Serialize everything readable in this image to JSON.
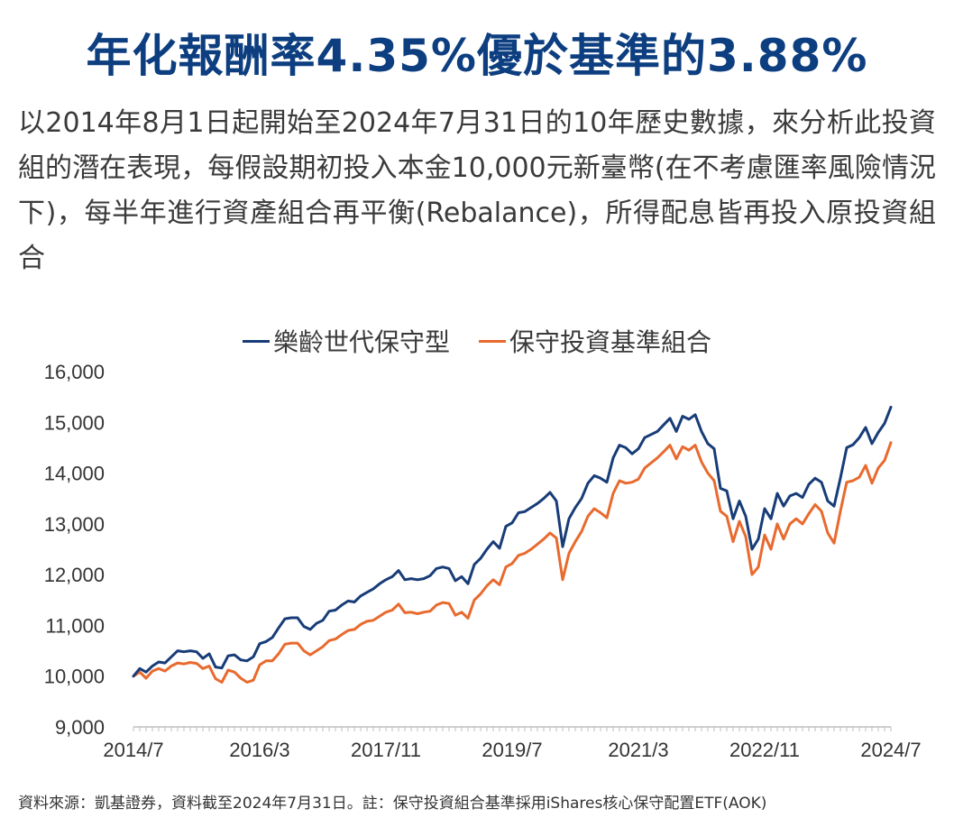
{
  "title": "年化報酬率4.35%優於基準的3.88%",
  "description": "以2014年8月1日起開始至2024年7月31日的10年歷史數據，來分析此投資組的潛在表現，每假設期初投入本金10,000元新臺幣(在不考慮匯率風險情況下)，每半年進行資產組合再平衡(Rebalance)，所得配息皆再投入原投資組合",
  "source": "資料來源：凱基證券，資料截至2024年7月31日。註：保守投資組合基準採用iShares核心保守配置ETF(AOK)",
  "chart_data": {
    "type": "line",
    "xlabel": "",
    "ylabel": "",
    "ylim": [
      9000,
      16000
    ],
    "y_ticks": [
      "9,000",
      "10,000",
      "11,000",
      "12,000",
      "13,000",
      "14,000",
      "15,000",
      "16,000"
    ],
    "x_range": [
      "2014-07",
      "2024-07"
    ],
    "x_tick_labels": [
      "2014/7",
      "2016/3",
      "2017/11",
      "2019/7",
      "2021/3",
      "2022/11",
      "2024/7"
    ],
    "grid": false,
    "legend_position": "top-center",
    "series": [
      {
        "name": "樂齡世代保守型",
        "color": "#173c78",
        "points": [
          [
            "2014-07",
            10000
          ],
          [
            "2014-08",
            10150
          ],
          [
            "2014-09",
            10080
          ],
          [
            "2014-10",
            10200
          ],
          [
            "2014-11",
            10280
          ],
          [
            "2014-12",
            10260
          ],
          [
            "2015-01",
            10380
          ],
          [
            "2015-02",
            10500
          ],
          [
            "2015-03",
            10480
          ],
          [
            "2015-04",
            10500
          ],
          [
            "2015-05",
            10480
          ],
          [
            "2015-06",
            10350
          ],
          [
            "2015-07",
            10440
          ],
          [
            "2015-08",
            10180
          ],
          [
            "2015-09",
            10160
          ],
          [
            "2015-10",
            10400
          ],
          [
            "2015-11",
            10420
          ],
          [
            "2015-12",
            10320
          ],
          [
            "2016-01",
            10300
          ],
          [
            "2016-02",
            10380
          ],
          [
            "2016-03",
            10640
          ],
          [
            "2016-04",
            10680
          ],
          [
            "2016-05",
            10760
          ],
          [
            "2016-06",
            10950
          ],
          [
            "2016-07",
            11130
          ],
          [
            "2016-08",
            11150
          ],
          [
            "2016-09",
            11150
          ],
          [
            "2016-10",
            10980
          ],
          [
            "2016-11",
            10920
          ],
          [
            "2016-12",
            11040
          ],
          [
            "2017-01",
            11100
          ],
          [
            "2017-02",
            11280
          ],
          [
            "2017-03",
            11300
          ],
          [
            "2017-04",
            11400
          ],
          [
            "2017-05",
            11480
          ],
          [
            "2017-06",
            11460
          ],
          [
            "2017-07",
            11580
          ],
          [
            "2017-08",
            11650
          ],
          [
            "2017-09",
            11720
          ],
          [
            "2017-10",
            11820
          ],
          [
            "2017-11",
            11900
          ],
          [
            "2017-12",
            11960
          ],
          [
            "2018-01",
            12080
          ],
          [
            "2018-02",
            11900
          ],
          [
            "2018-03",
            11920
          ],
          [
            "2018-04",
            11900
          ],
          [
            "2018-05",
            11920
          ],
          [
            "2018-06",
            11980
          ],
          [
            "2018-07",
            12120
          ],
          [
            "2018-08",
            12150
          ],
          [
            "2018-09",
            12120
          ],
          [
            "2018-10",
            11880
          ],
          [
            "2018-11",
            11960
          ],
          [
            "2018-12",
            11820
          ],
          [
            "2019-01",
            12200
          ],
          [
            "2019-02",
            12320
          ],
          [
            "2019-03",
            12500
          ],
          [
            "2019-04",
            12650
          ],
          [
            "2019-05",
            12520
          ],
          [
            "2019-06",
            12950
          ],
          [
            "2019-07",
            13020
          ],
          [
            "2019-08",
            13220
          ],
          [
            "2019-09",
            13240
          ],
          [
            "2019-10",
            13320
          ],
          [
            "2019-11",
            13400
          ],
          [
            "2019-12",
            13500
          ],
          [
            "2020-01",
            13620
          ],
          [
            "2020-02",
            13450
          ],
          [
            "2020-03",
            12550
          ],
          [
            "2020-04",
            13100
          ],
          [
            "2020-05",
            13320
          ],
          [
            "2020-06",
            13500
          ],
          [
            "2020-07",
            13800
          ],
          [
            "2020-08",
            13950
          ],
          [
            "2020-09",
            13900
          ],
          [
            "2020-10",
            13820
          ],
          [
            "2020-11",
            14300
          ],
          [
            "2020-12",
            14550
          ],
          [
            "2021-01",
            14500
          ],
          [
            "2021-02",
            14380
          ],
          [
            "2021-03",
            14480
          ],
          [
            "2021-04",
            14700
          ],
          [
            "2021-05",
            14760
          ],
          [
            "2021-06",
            14820
          ],
          [
            "2021-07",
            14950
          ],
          [
            "2021-08",
            15080
          ],
          [
            "2021-09",
            14820
          ],
          [
            "2021-10",
            15120
          ],
          [
            "2021-11",
            15060
          ],
          [
            "2021-12",
            15150
          ],
          [
            "2022-01",
            14820
          ],
          [
            "2022-02",
            14580
          ],
          [
            "2022-03",
            14480
          ],
          [
            "2022-04",
            13700
          ],
          [
            "2022-05",
            13650
          ],
          [
            "2022-06",
            13100
          ],
          [
            "2022-07",
            13450
          ],
          [
            "2022-08",
            13150
          ],
          [
            "2022-09",
            12500
          ],
          [
            "2022-10",
            12700
          ],
          [
            "2022-11",
            13300
          ],
          [
            "2022-12",
            13100
          ],
          [
            "2023-01",
            13600
          ],
          [
            "2023-02",
            13350
          ],
          [
            "2023-03",
            13550
          ],
          [
            "2023-04",
            13600
          ],
          [
            "2023-05",
            13520
          ],
          [
            "2023-06",
            13780
          ],
          [
            "2023-07",
            13900
          ],
          [
            "2023-08",
            13820
          ],
          [
            "2023-09",
            13450
          ],
          [
            "2023-10",
            13350
          ],
          [
            "2023-11",
            13900
          ],
          [
            "2023-12",
            14500
          ],
          [
            "2024-01",
            14560
          ],
          [
            "2024-02",
            14700
          ],
          [
            "2024-03",
            14900
          ],
          [
            "2024-04",
            14580
          ],
          [
            "2024-05",
            14800
          ],
          [
            "2024-06",
            14980
          ],
          [
            "2024-07",
            15300
          ]
        ]
      },
      {
        "name": "保守投資基準組合",
        "color": "#e86a2e",
        "points": [
          [
            "2014-07",
            10000
          ],
          [
            "2014-08",
            10080
          ],
          [
            "2014-09",
            9960
          ],
          [
            "2014-10",
            10100
          ],
          [
            "2014-11",
            10150
          ],
          [
            "2014-12",
            10100
          ],
          [
            "2015-01",
            10200
          ],
          [
            "2015-02",
            10260
          ],
          [
            "2015-03",
            10240
          ],
          [
            "2015-04",
            10270
          ],
          [
            "2015-05",
            10250
          ],
          [
            "2015-06",
            10150
          ],
          [
            "2015-07",
            10200
          ],
          [
            "2015-08",
            9950
          ],
          [
            "2015-09",
            9880
          ],
          [
            "2015-10",
            10120
          ],
          [
            "2015-11",
            10080
          ],
          [
            "2015-12",
            9960
          ],
          [
            "2016-01",
            9880
          ],
          [
            "2016-02",
            9920
          ],
          [
            "2016-03",
            10220
          ],
          [
            "2016-04",
            10300
          ],
          [
            "2016-05",
            10300
          ],
          [
            "2016-06",
            10440
          ],
          [
            "2016-07",
            10630
          ],
          [
            "2016-08",
            10650
          ],
          [
            "2016-09",
            10650
          ],
          [
            "2016-10",
            10500
          ],
          [
            "2016-11",
            10420
          ],
          [
            "2016-12",
            10500
          ],
          [
            "2017-01",
            10580
          ],
          [
            "2017-02",
            10700
          ],
          [
            "2017-03",
            10730
          ],
          [
            "2017-04",
            10820
          ],
          [
            "2017-05",
            10900
          ],
          [
            "2017-06",
            10920
          ],
          [
            "2017-07",
            11020
          ],
          [
            "2017-08",
            11080
          ],
          [
            "2017-09",
            11100
          ],
          [
            "2017-10",
            11180
          ],
          [
            "2017-11",
            11260
          ],
          [
            "2017-12",
            11300
          ],
          [
            "2018-01",
            11420
          ],
          [
            "2018-02",
            11250
          ],
          [
            "2018-03",
            11260
          ],
          [
            "2018-04",
            11230
          ],
          [
            "2018-05",
            11260
          ],
          [
            "2018-06",
            11280
          ],
          [
            "2018-07",
            11400
          ],
          [
            "2018-08",
            11450
          ],
          [
            "2018-09",
            11430
          ],
          [
            "2018-10",
            11200
          ],
          [
            "2018-11",
            11260
          ],
          [
            "2018-12",
            11140
          ],
          [
            "2019-01",
            11500
          ],
          [
            "2019-02",
            11620
          ],
          [
            "2019-03",
            11780
          ],
          [
            "2019-04",
            11900
          ],
          [
            "2019-05",
            11800
          ],
          [
            "2019-06",
            12150
          ],
          [
            "2019-07",
            12220
          ],
          [
            "2019-08",
            12380
          ],
          [
            "2019-09",
            12420
          ],
          [
            "2019-10",
            12500
          ],
          [
            "2019-11",
            12600
          ],
          [
            "2019-12",
            12700
          ],
          [
            "2020-01",
            12820
          ],
          [
            "2020-02",
            12720
          ],
          [
            "2020-03",
            11900
          ],
          [
            "2020-04",
            12420
          ],
          [
            "2020-05",
            12650
          ],
          [
            "2020-06",
            12850
          ],
          [
            "2020-07",
            13150
          ],
          [
            "2020-08",
            13300
          ],
          [
            "2020-09",
            13220
          ],
          [
            "2020-10",
            13120
          ],
          [
            "2020-11",
            13600
          ],
          [
            "2020-12",
            13850
          ],
          [
            "2021-01",
            13800
          ],
          [
            "2021-02",
            13820
          ],
          [
            "2021-03",
            13880
          ],
          [
            "2021-04",
            14100
          ],
          [
            "2021-05",
            14200
          ],
          [
            "2021-06",
            14300
          ],
          [
            "2021-07",
            14420
          ],
          [
            "2021-08",
            14550
          ],
          [
            "2021-09",
            14280
          ],
          [
            "2021-10",
            14520
          ],
          [
            "2021-11",
            14450
          ],
          [
            "2021-12",
            14550
          ],
          [
            "2022-01",
            14220
          ],
          [
            "2022-02",
            14000
          ],
          [
            "2022-03",
            13850
          ],
          [
            "2022-04",
            13250
          ],
          [
            "2022-05",
            13150
          ],
          [
            "2022-06",
            12650
          ],
          [
            "2022-07",
            13050
          ],
          [
            "2022-08",
            12750
          ],
          [
            "2022-09",
            12000
          ],
          [
            "2022-10",
            12150
          ],
          [
            "2022-11",
            12780
          ],
          [
            "2022-12",
            12500
          ],
          [
            "2023-01",
            13000
          ],
          [
            "2023-02",
            12700
          ],
          [
            "2023-03",
            13000
          ],
          [
            "2023-04",
            13100
          ],
          [
            "2023-05",
            13000
          ],
          [
            "2023-06",
            13200
          ],
          [
            "2023-07",
            13380
          ],
          [
            "2023-08",
            13250
          ],
          [
            "2023-09",
            12820
          ],
          [
            "2023-10",
            12620
          ],
          [
            "2023-11",
            13250
          ],
          [
            "2023-12",
            13820
          ],
          [
            "2024-01",
            13850
          ],
          [
            "2024-02",
            13920
          ],
          [
            "2024-03",
            14150
          ],
          [
            "2024-04",
            13800
          ],
          [
            "2024-05",
            14100
          ],
          [
            "2024-06",
            14250
          ],
          [
            "2024-07",
            14600
          ]
        ]
      }
    ]
  }
}
